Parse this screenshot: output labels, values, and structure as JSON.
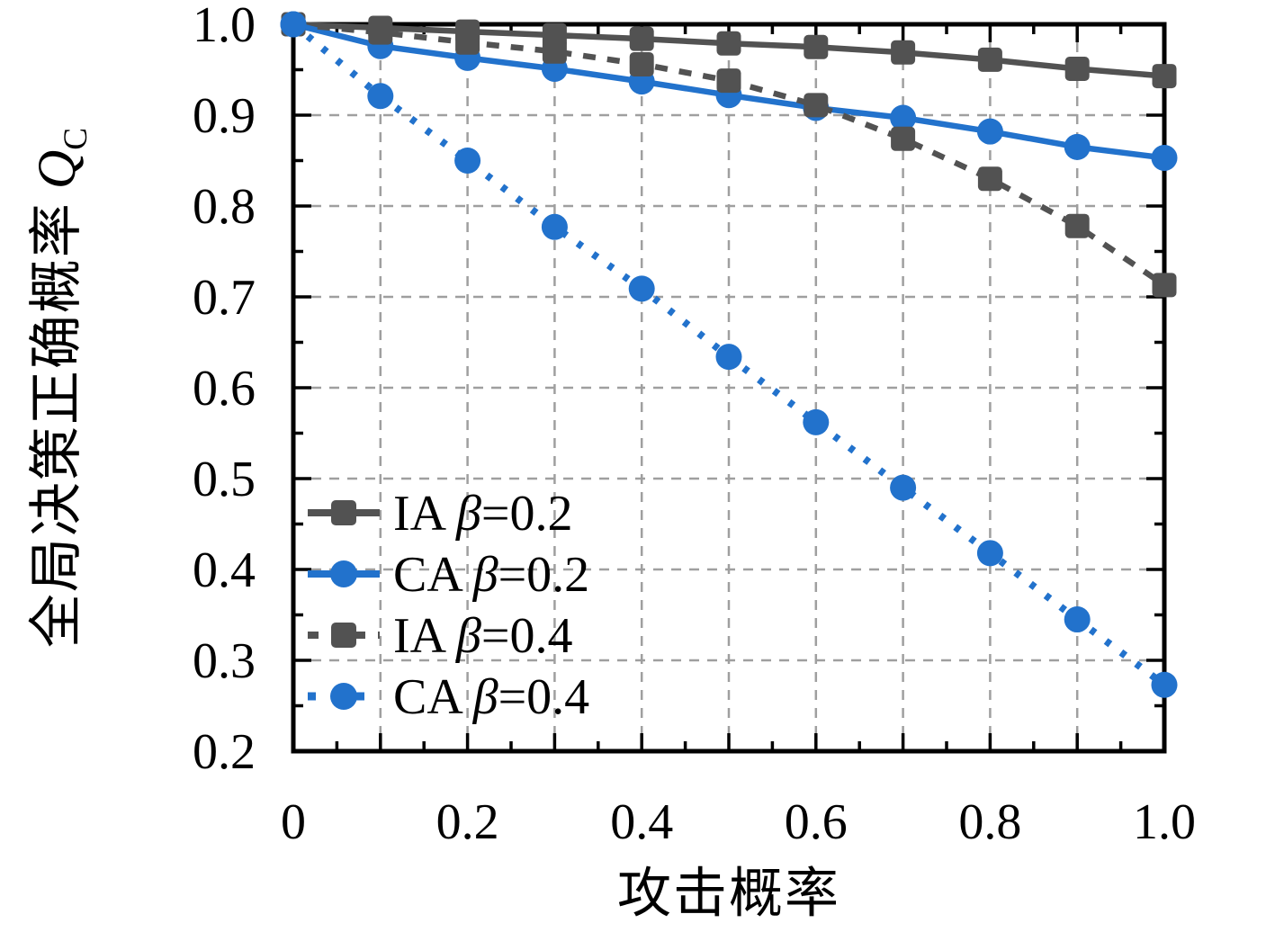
{
  "chart_data": {
    "type": "line",
    "x": [
      0,
      0.1,
      0.2,
      0.3,
      0.4,
      0.5,
      0.6,
      0.7,
      0.8,
      0.9,
      1.0
    ],
    "series": [
      {
        "name": "IA β=0.2",
        "color": "#525252",
        "line": "solid",
        "marker": "square",
        "values": [
          1.0,
          0.996,
          0.992,
          0.988,
          0.984,
          0.979,
          0.975,
          0.969,
          0.961,
          0.951,
          0.943
        ]
      },
      {
        "name": "CA β=0.2",
        "color": "#2272cc",
        "line": "solid",
        "marker": "circle",
        "values": [
          1.0,
          0.976,
          0.963,
          0.951,
          0.937,
          0.922,
          0.908,
          0.897,
          0.882,
          0.865,
          0.853
        ]
      },
      {
        "name": "IA β=0.4",
        "color": "#525252",
        "line": "dashed",
        "marker": "square",
        "values": [
          1.0,
          0.991,
          0.98,
          0.97,
          0.956,
          0.938,
          0.911,
          0.874,
          0.83,
          0.778,
          0.713
        ]
      },
      {
        "name": "CA β=0.4",
        "color": "#2272cc",
        "line": "dotted",
        "marker": "circle",
        "values": [
          1.0,
          0.921,
          0.85,
          0.777,
          0.709,
          0.634,
          0.562,
          0.49,
          0.418,
          0.345,
          0.273
        ]
      }
    ],
    "xlabel": "攻击概率",
    "ylabel": {
      "text": "全局决策正确概率",
      "symbol": "Q",
      "subscript": "C"
    },
    "xlim": [
      0,
      1.0
    ],
    "ylim": [
      0.2,
      1.0
    ],
    "xticks": [
      {
        "value": 0,
        "label": "0"
      },
      {
        "value": 0.2,
        "label": "0.2"
      },
      {
        "value": 0.4,
        "label": "0.4"
      },
      {
        "value": 0.6,
        "label": "0.6"
      },
      {
        "value": 0.8,
        "label": "0.8"
      },
      {
        "value": 1.0,
        "label": "1.0"
      }
    ],
    "yticks": [
      {
        "value": 0.2,
        "label": "0.2"
      },
      {
        "value": 0.3,
        "label": "0.3"
      },
      {
        "value": 0.4,
        "label": "0.4"
      },
      {
        "value": 0.5,
        "label": "0.5"
      },
      {
        "value": 0.6,
        "label": "0.6"
      },
      {
        "value": 0.7,
        "label": "0.7"
      },
      {
        "value": 0.8,
        "label": "0.8"
      },
      {
        "value": 0.9,
        "label": "0.9"
      },
      {
        "value": 1.0,
        "label": "1.0"
      }
    ],
    "grid": true,
    "legend_position": "lower-left"
  },
  "colors": {
    "blue": "#2272cc",
    "gray": "#525252",
    "grid": "#9f9f9f",
    "axis": "#000000",
    "background": "#ffffff"
  }
}
